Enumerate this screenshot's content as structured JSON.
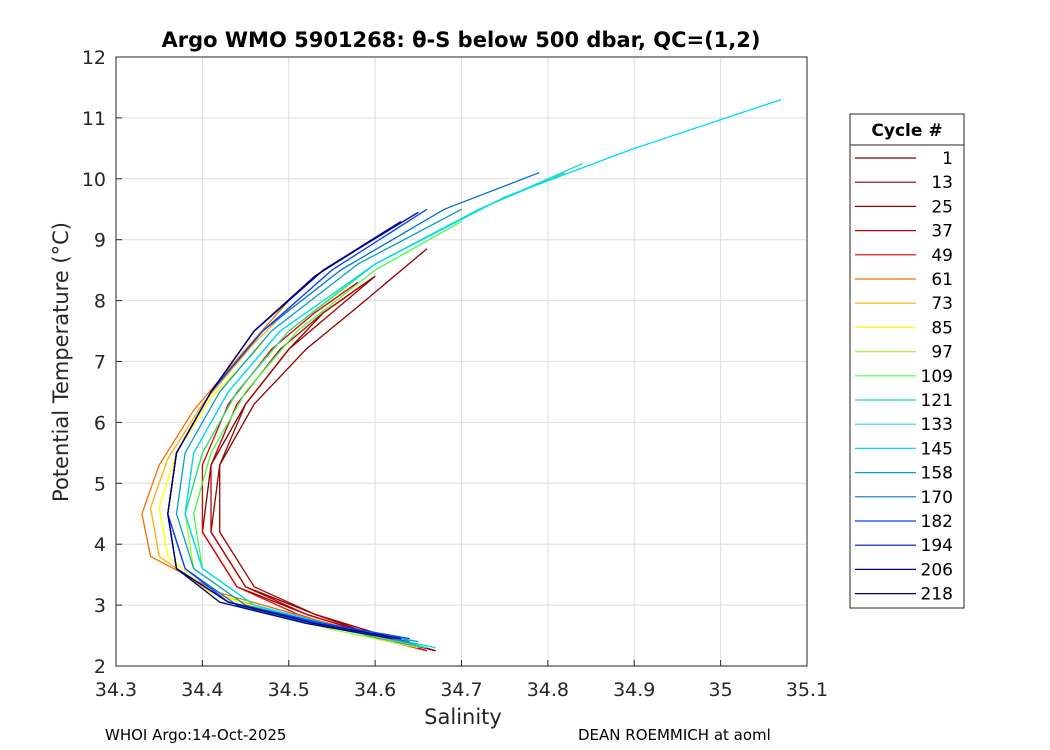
{
  "chart_data": {
    "type": "line",
    "title": "Argo WMO 5901268: θ-S below 500 dbar,  QC=(1,2)",
    "xlabel": "Salinity",
    "ylabel": "Potential Temperature (°C)",
    "xlim": [
      34.3,
      35.1
    ],
    "ylim": [
      2,
      12
    ],
    "xticks": [
      "34.3",
      "34.4",
      "34.5",
      "34.6",
      "34.7",
      "34.8",
      "34.9",
      "35",
      "35.1"
    ],
    "yticks": [
      "2",
      "3",
      "4",
      "5",
      "6",
      "7",
      "8",
      "9",
      "10",
      "11",
      "12"
    ],
    "grid": true,
    "legend": {
      "title": "Cycle #",
      "placement": "right-outside",
      "entries": [
        {
          "label": "1",
          "color": "#800000"
        },
        {
          "label": "13",
          "color": "#8c0000"
        },
        {
          "label": "25",
          "color": "#a00000"
        },
        {
          "label": "37",
          "color": "#c00000"
        },
        {
          "label": "49",
          "color": "#e00000"
        },
        {
          "label": "61",
          "color": "#f07000"
        },
        {
          "label": "73",
          "color": "#ffb000"
        },
        {
          "label": "85",
          "color": "#ffff00"
        },
        {
          "label": "97",
          "color": "#a0ff20"
        },
        {
          "label": "109",
          "color": "#40ff40"
        },
        {
          "label": "121",
          "color": "#20e080"
        },
        {
          "label": "133",
          "color": "#20e0c0"
        },
        {
          "label": "145",
          "color": "#00d8ff"
        },
        {
          "label": "158",
          "color": "#00a0c8"
        },
        {
          "label": "170",
          "color": "#0070d0"
        },
        {
          "label": "182",
          "color": "#0040ff"
        },
        {
          "label": "194",
          "color": "#0010c0"
        },
        {
          "label": "206",
          "color": "#000090"
        },
        {
          "label": "218",
          "color": "#000070"
        }
      ]
    },
    "series": [
      {
        "label": "1",
        "color": "#800000",
        "x": [
          34.67,
          34.6,
          34.52,
          34.44,
          34.4,
          34.41,
          34.45,
          34.5,
          34.54,
          34.6
        ],
        "y": [
          2.25,
          2.5,
          2.85,
          3.3,
          4.2,
          5.3,
          6.3,
          7.2,
          7.8,
          8.4
        ]
      },
      {
        "label": "13",
        "color": "#8c0000",
        "x": [
          34.67,
          34.61,
          34.53,
          34.45,
          34.41,
          34.42,
          34.46,
          34.52,
          34.58,
          34.66
        ],
        "y": [
          2.25,
          2.5,
          2.85,
          3.3,
          4.2,
          5.3,
          6.3,
          7.2,
          7.9,
          8.85
        ]
      },
      {
        "label": "25",
        "color": "#a00000",
        "x": [
          34.67,
          34.6,
          34.53,
          34.46,
          34.42,
          34.42,
          34.45,
          34.5,
          34.55,
          34.6
        ],
        "y": [
          2.25,
          2.5,
          2.85,
          3.3,
          4.2,
          5.3,
          6.3,
          7.2,
          7.8,
          8.4
        ]
      },
      {
        "label": "37",
        "color": "#c00000",
        "x": [
          34.66,
          34.6,
          34.52,
          34.45,
          34.41,
          34.41,
          34.44,
          34.49,
          34.54,
          34.59
        ],
        "y": [
          2.25,
          2.5,
          2.85,
          3.3,
          4.2,
          5.3,
          6.3,
          7.2,
          7.8,
          8.3
        ]
      },
      {
        "label": "49",
        "color": "#e00000",
        "x": [
          34.66,
          34.59,
          34.51,
          34.44,
          34.4,
          34.4,
          34.43,
          34.48,
          34.53,
          34.58
        ],
        "y": [
          2.25,
          2.5,
          2.85,
          3.3,
          4.2,
          5.3,
          6.3,
          7.2,
          7.8,
          8.3
        ]
      },
      {
        "label": "61",
        "color": "#f07000",
        "x": [
          34.6,
          34.52,
          34.42,
          34.34,
          34.33,
          34.35,
          34.39,
          34.45,
          34.5
        ],
        "y": [
          2.5,
          2.8,
          3.2,
          3.8,
          4.5,
          5.3,
          6.2,
          7.2,
          8.0
        ]
      },
      {
        "label": "73",
        "color": "#ffb000",
        "x": [
          34.6,
          34.51,
          34.41,
          34.35,
          34.34,
          34.36,
          34.4,
          34.46,
          34.51
        ],
        "y": [
          2.5,
          2.8,
          3.2,
          3.8,
          4.6,
          5.4,
          6.3,
          7.3,
          8.0
        ]
      },
      {
        "label": "85",
        "color": "#ffff00",
        "x": [
          34.6,
          34.5,
          34.41,
          34.36,
          34.35,
          34.37,
          34.41,
          34.47
        ],
        "y": [
          2.5,
          2.8,
          3.2,
          3.8,
          4.6,
          5.5,
          6.4,
          7.3
        ]
      },
      {
        "label": "97",
        "color": "#a0ff20",
        "x": [
          34.65,
          34.55,
          34.45,
          34.39,
          34.38,
          34.4,
          34.44,
          34.5,
          34.58
        ],
        "y": [
          2.3,
          2.6,
          3.0,
          3.6,
          4.5,
          5.5,
          6.5,
          7.5,
          8.4
        ]
      },
      {
        "label": "109",
        "color": "#40ff40",
        "x": [
          34.66,
          34.56,
          34.46,
          34.4,
          34.39,
          34.41,
          34.45,
          34.51,
          34.6,
          34.7
        ],
        "y": [
          2.3,
          2.6,
          3.0,
          3.6,
          4.5,
          5.5,
          6.5,
          7.5,
          8.5,
          9.3
        ]
      },
      {
        "label": "121",
        "color": "#20e080",
        "x": [
          34.66,
          34.56,
          34.46,
          34.4,
          34.38,
          34.4,
          34.44,
          34.5,
          34.6,
          34.72,
          34.82
        ],
        "y": [
          2.3,
          2.6,
          3.0,
          3.6,
          4.5,
          5.5,
          6.5,
          7.5,
          8.6,
          9.5,
          10.1
        ]
      },
      {
        "label": "133",
        "color": "#20e0c0",
        "x": [
          34.66,
          34.56,
          34.46,
          34.4,
          34.38,
          34.39,
          34.43,
          34.49,
          34.6,
          34.72,
          34.84
        ],
        "y": [
          2.3,
          2.6,
          3.0,
          3.6,
          4.5,
          5.5,
          6.5,
          7.5,
          8.6,
          9.5,
          10.25
        ]
      },
      {
        "label": "145",
        "color": "#00d8ff",
        "x": [
          34.67,
          34.57,
          34.46,
          34.4,
          34.38,
          34.39,
          34.43,
          34.49,
          34.6,
          34.75,
          34.9,
          35.07
        ],
        "y": [
          2.3,
          2.6,
          3.0,
          3.6,
          4.5,
          5.5,
          6.5,
          7.5,
          8.6,
          9.7,
          10.5,
          11.3
        ]
      },
      {
        "label": "158",
        "color": "#00a0c8",
        "x": [
          34.65,
          34.55,
          34.45,
          34.39,
          34.37,
          34.38,
          34.42,
          34.48,
          34.58,
          34.7
        ],
        "y": [
          2.4,
          2.65,
          3.0,
          3.6,
          4.5,
          5.5,
          6.5,
          7.5,
          8.6,
          9.5
        ]
      },
      {
        "label": "170",
        "color": "#0070d0",
        "x": [
          34.64,
          34.54,
          34.44,
          34.38,
          34.36,
          34.37,
          34.41,
          34.47,
          34.56,
          34.68,
          34.79
        ],
        "y": [
          2.4,
          2.65,
          3.0,
          3.6,
          4.5,
          5.5,
          6.5,
          7.5,
          8.5,
          9.5,
          10.1
        ]
      },
      {
        "label": "182",
        "color": "#0040ff",
        "x": [
          34.64,
          34.54,
          34.43,
          34.38,
          34.36,
          34.37,
          34.41,
          34.47,
          34.55,
          34.66
        ],
        "y": [
          2.45,
          2.7,
          3.05,
          3.6,
          4.5,
          5.5,
          6.5,
          7.5,
          8.5,
          9.5
        ]
      },
      {
        "label": "194",
        "color": "#0010c0",
        "x": [
          34.63,
          34.53,
          34.43,
          34.37,
          34.36,
          34.37,
          34.41,
          34.46,
          34.54,
          34.63
        ],
        "y": [
          2.45,
          2.7,
          3.05,
          3.6,
          4.5,
          5.5,
          6.5,
          7.5,
          8.5,
          9.3
        ]
      },
      {
        "label": "206",
        "color": "#000090",
        "x": [
          34.63,
          34.53,
          34.43,
          34.37,
          34.36,
          34.37,
          34.41,
          34.46,
          34.54,
          34.65
        ],
        "y": [
          2.45,
          2.7,
          3.05,
          3.6,
          4.5,
          5.5,
          6.5,
          7.5,
          8.5,
          9.45
        ]
      },
      {
        "label": "218",
        "color": "#000070",
        "x": [
          34.62,
          34.52,
          34.42,
          34.37,
          34.36,
          34.37,
          34.41,
          34.46,
          34.53,
          34.62
        ],
        "y": [
          2.45,
          2.7,
          3.05,
          3.6,
          4.5,
          5.5,
          6.5,
          7.5,
          8.4,
          9.2
        ]
      }
    ]
  },
  "footer": {
    "left": "WHOI Argo:14-Oct-2025",
    "right": "DEAN ROEMMICH at aoml"
  }
}
